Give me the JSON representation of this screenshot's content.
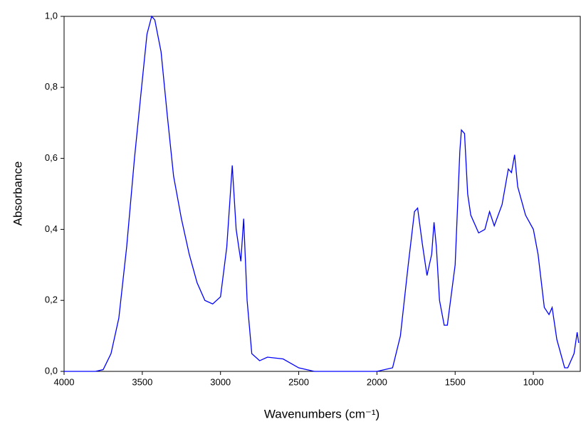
{
  "chart_data": {
    "type": "line",
    "x_label": "Wavenumbers (cm⁻¹)",
    "y_label": "Absorbance",
    "x": [
      4000,
      3800,
      3750,
      3700,
      3650,
      3600,
      3550,
      3500,
      3470,
      3440,
      3420,
      3380,
      3340,
      3300,
      3250,
      3200,
      3150,
      3100,
      3050,
      3000,
      2960,
      2925,
      2900,
      2870,
      2852,
      2830,
      2800,
      2750,
      2700,
      2600,
      2500,
      2400,
      2000,
      1900,
      1850,
      1800,
      1760,
      1740,
      1710,
      1680,
      1650,
      1635,
      1620,
      1600,
      1570,
      1550,
      1500,
      1470,
      1460,
      1440,
      1420,
      1400,
      1350,
      1310,
      1280,
      1250,
      1200,
      1160,
      1140,
      1120,
      1100,
      1050,
      1000,
      970,
      930,
      900,
      880,
      850,
      800,
      780,
      740,
      720,
      710
    ],
    "series": [
      {
        "color": "#0000ff",
        "values": [
          0,
          0,
          0.005,
          0.05,
          0.15,
          0.35,
          0.6,
          0.82,
          0.95,
          1.0,
          0.99,
          0.9,
          0.72,
          0.55,
          0.43,
          0.33,
          0.25,
          0.2,
          0.19,
          0.21,
          0.35,
          0.58,
          0.4,
          0.31,
          0.43,
          0.2,
          0.05,
          0.03,
          0.04,
          0.035,
          0.01,
          0,
          0,
          0.01,
          0.1,
          0.3,
          0.45,
          0.46,
          0.36,
          0.27,
          0.33,
          0.42,
          0.35,
          0.2,
          0.13,
          0.13,
          0.3,
          0.62,
          0.68,
          0.67,
          0.5,
          0.44,
          0.39,
          0.4,
          0.45,
          0.41,
          0.47,
          0.57,
          0.56,
          0.61,
          0.52,
          0.44,
          0.4,
          0.33,
          0.18,
          0.16,
          0.18,
          0.09,
          0.01,
          0.01,
          0.05,
          0.11,
          0.08
        ]
      }
    ],
    "xlim": [
      4000,
      700
    ],
    "xticks": [
      4000,
      3500,
      3000,
      2500,
      2000,
      1500,
      1000
    ],
    "ylim": [
      0,
      1
    ],
    "yticks": [
      {
        "value": 0,
        "label": "0,0"
      },
      {
        "value": 0.2,
        "label": "0,2"
      },
      {
        "value": 0.4,
        "label": "0,4"
      },
      {
        "value": 0.6,
        "label": "0,6"
      },
      {
        "value": 0.8,
        "label": "0,8"
      },
      {
        "value": 1,
        "label": "1,0"
      }
    ],
    "grid": false
  }
}
